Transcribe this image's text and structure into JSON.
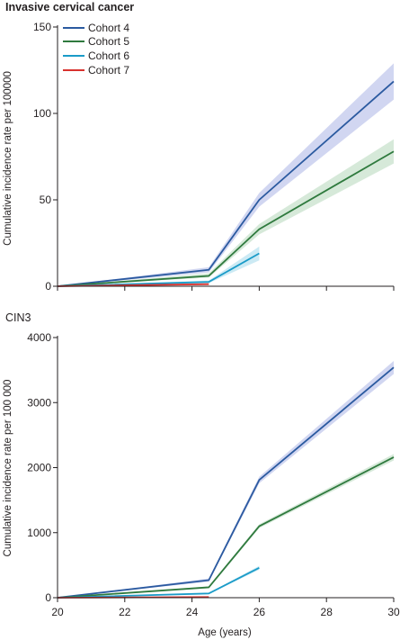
{
  "chart_data": [
    {
      "type": "line",
      "title": "Invasive cervical cancer",
      "title_bold": true,
      "ylabel": "Cumulative incidence rate per 100000",
      "xlabel": "",
      "xlim": [
        20,
        30
      ],
      "ylim": [
        0,
        150
      ],
      "yticks": [
        0,
        50,
        100,
        150
      ],
      "ytick_labels": [
        "0",
        "50",
        "100",
        "150"
      ],
      "xticks": [
        20,
        22,
        24,
        26,
        28,
        30
      ],
      "show_xtick_labels": false,
      "grid": false,
      "legend": "top-left",
      "series": [
        {
          "name": "Cohort 4",
          "color": "#2b5aa0",
          "band_color": "#c9cfee",
          "x": [
            20,
            24.5,
            26,
            30
          ],
          "values": [
            0,
            9.5,
            50,
            118.5
          ],
          "lower": [
            0,
            8,
            46,
            108
          ],
          "upper": [
            0,
            11,
            54,
            129
          ]
        },
        {
          "name": "Cohort 5",
          "color": "#2f7a3e",
          "band_color": "#cfe5d2",
          "x": [
            20,
            24.5,
            26,
            30
          ],
          "values": [
            0,
            6,
            33,
            78
          ],
          "lower": [
            0,
            5,
            30,
            71
          ],
          "upper": [
            0,
            7.5,
            36,
            85
          ]
        },
        {
          "name": "Cohort 6",
          "color": "#1a9bc8",
          "band_color": "#c3e6f2",
          "x": [
            20,
            24.5,
            26
          ],
          "values": [
            0,
            2.5,
            19
          ],
          "lower": [
            0,
            1.8,
            15
          ],
          "upper": [
            0,
            3.3,
            23
          ]
        },
        {
          "name": "Cohort 7",
          "color": "#d8322e",
          "band_color": "#f3c8c6",
          "x": [
            20,
            24.5
          ],
          "values": [
            0,
            1.2
          ],
          "lower": [
            0,
            0.8
          ],
          "upper": [
            0,
            1.6
          ]
        }
      ]
    },
    {
      "type": "line",
      "title": "CIN3",
      "title_bold": false,
      "ylabel": "Cumulative incidence rate per 100 000",
      "xlabel": "Age (years)",
      "xlim": [
        20,
        30
      ],
      "ylim": [
        0,
        4000
      ],
      "yticks": [
        0,
        1000,
        2000,
        3000,
        4000
      ],
      "ytick_labels": [
        "0",
        "1000",
        "2000",
        "3000",
        "4000"
      ],
      "xticks": [
        20,
        22,
        24,
        26,
        28,
        30
      ],
      "xtick_labels": [
        "20",
        "22",
        "24",
        "26",
        "28",
        "30"
      ],
      "show_xtick_labels": true,
      "grid": false,
      "series": [
        {
          "name": "Cohort 4",
          "color": "#2b5aa0",
          "band_color": "#c9cfee",
          "x": [
            20,
            24.5,
            26,
            30
          ],
          "values": [
            0,
            270,
            1810,
            3540
          ],
          "lower": [
            0,
            245,
            1760,
            3440
          ],
          "upper": [
            0,
            295,
            1860,
            3640
          ]
        },
        {
          "name": "Cohort 5",
          "color": "#2f7a3e",
          "band_color": "#cfe5d2",
          "x": [
            20,
            24.5,
            26,
            30
          ],
          "values": [
            0,
            160,
            1100,
            2160
          ],
          "lower": [
            0,
            145,
            1070,
            2110
          ],
          "upper": [
            0,
            175,
            1130,
            2210
          ]
        },
        {
          "name": "Cohort 6",
          "color": "#1a9bc8",
          "band_color": "#c3e6f2",
          "x": [
            20,
            24.5,
            26
          ],
          "values": [
            0,
            65,
            460
          ],
          "lower": [
            0,
            55,
            430
          ],
          "upper": [
            0,
            75,
            490
          ]
        },
        {
          "name": "Cohort 7",
          "color": "#d8322e",
          "band_color": "#f3c8c6",
          "x": [
            20,
            24.5
          ],
          "values": [
            0,
            10
          ],
          "lower": [
            0,
            7
          ],
          "upper": [
            0,
            13
          ]
        }
      ]
    }
  ]
}
